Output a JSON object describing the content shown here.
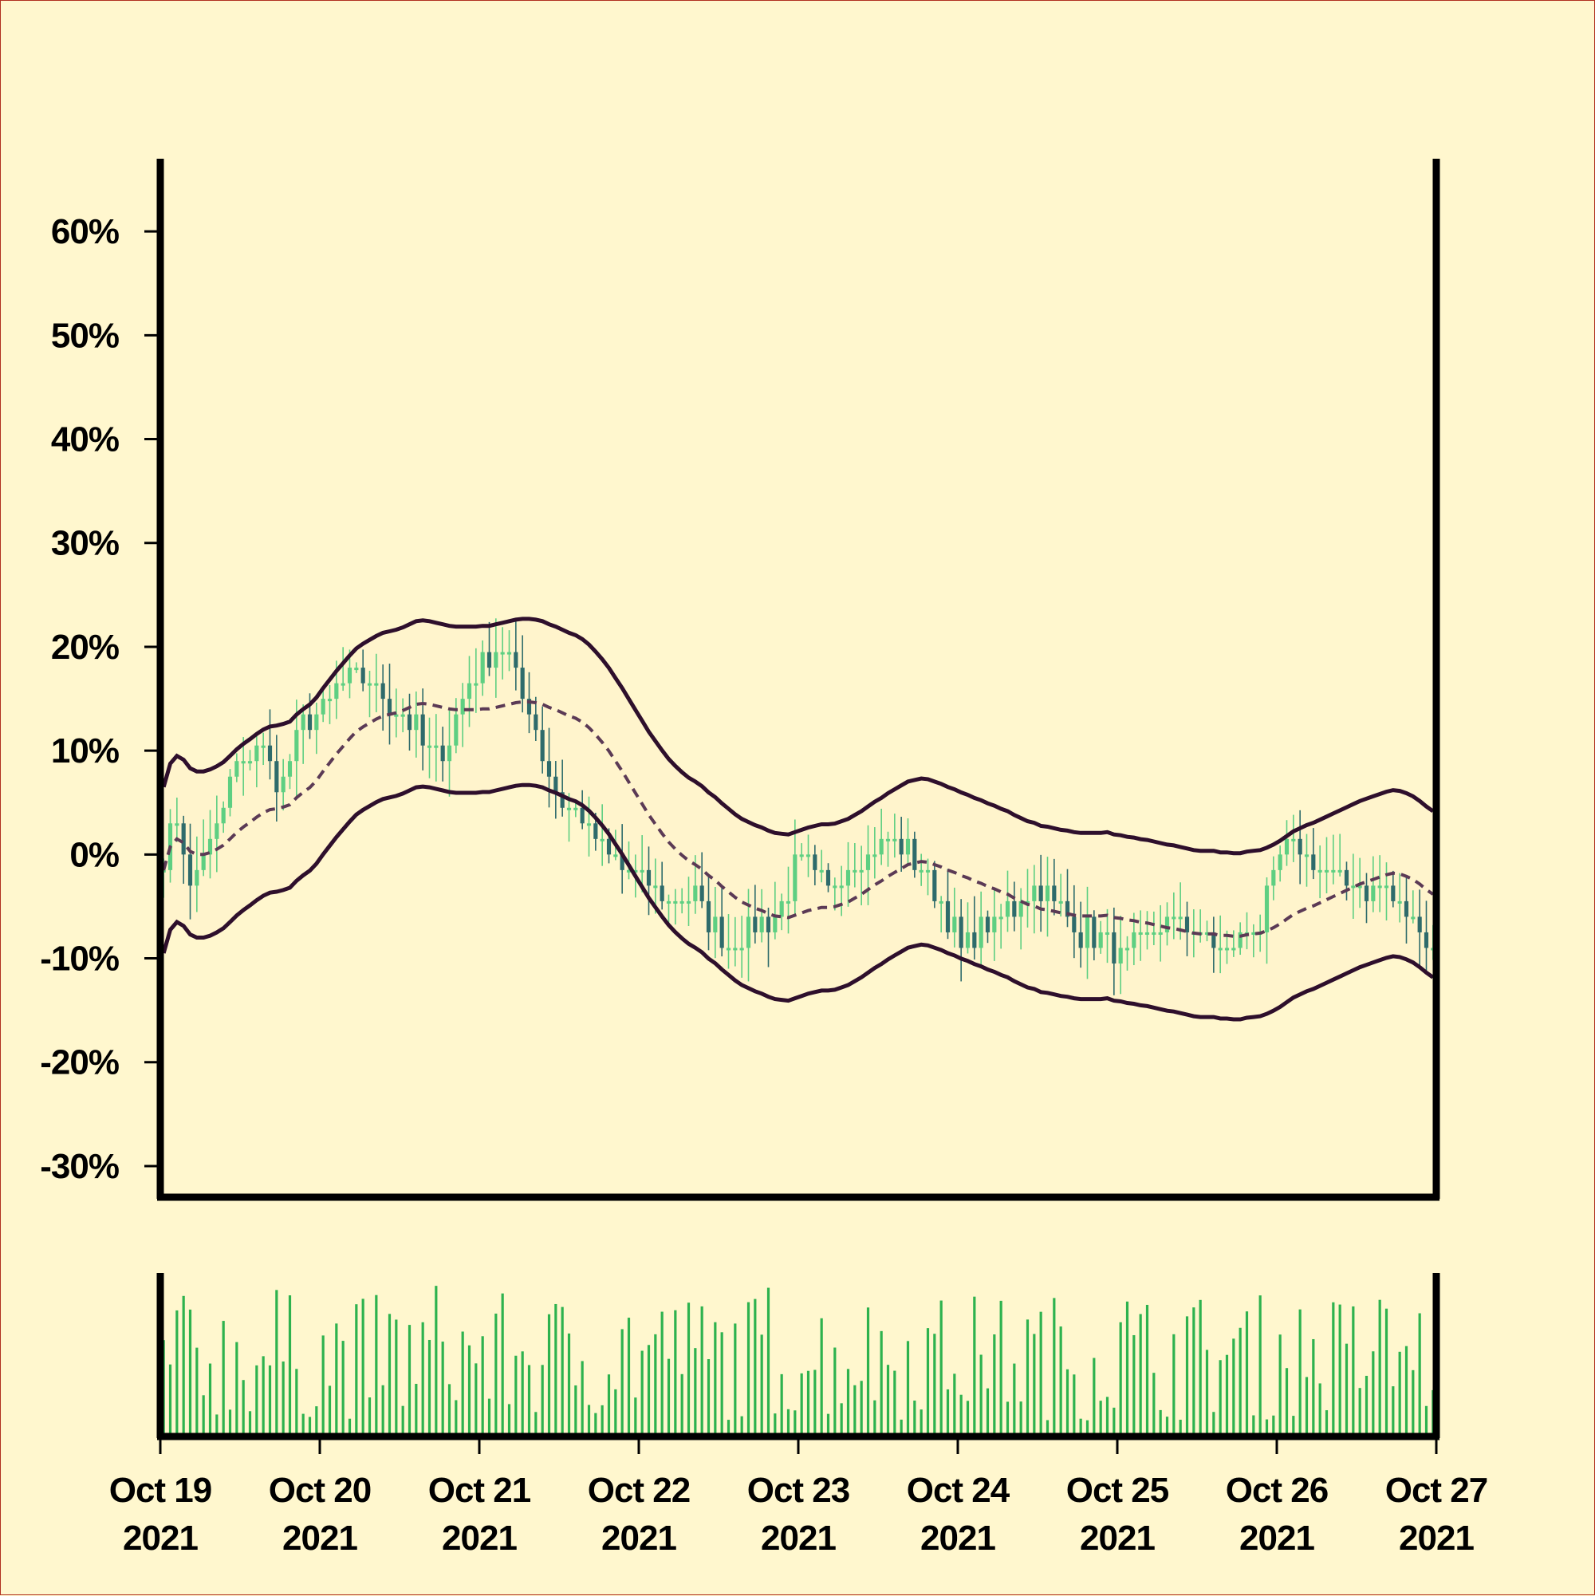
{
  "colors": {
    "background": "#fff7ce",
    "axis": "#000000",
    "band_line": "#2e0f2c",
    "band_fill": "#fff3cc",
    "middle_line": "#5b3a55",
    "candle_up": "#5ecf82",
    "candle_down": "#2e6b6b",
    "volume": "#2db24e"
  },
  "chart_data": {
    "type": "candlestick",
    "title": "",
    "xlabel": "",
    "ylabel": "",
    "y_tick_labels": [
      "-30%",
      "-20%",
      "-10%",
      "0%",
      "10%",
      "20%",
      "30%",
      "40%",
      "50%",
      "60%"
    ],
    "y_ticks": [
      -30,
      -20,
      -10,
      0,
      10,
      20,
      30,
      40,
      50,
      60
    ],
    "ylim": [
      -33,
      67
    ],
    "x_tick_labels": [
      {
        "date": "Oct 19",
        "year": "2021"
      },
      {
        "date": "Oct 20",
        "year": "2021"
      },
      {
        "date": "Oct 21",
        "year": "2021"
      },
      {
        "date": "Oct 22",
        "year": "2021"
      },
      {
        "date": "Oct 23",
        "year": "2021"
      },
      {
        "date": "Oct 24",
        "year": "2021"
      },
      {
        "date": "Oct 25",
        "year": "2021"
      },
      {
        "date": "Oct 26",
        "year": "2021"
      },
      {
        "date": "Oct 27",
        "year": "2021"
      }
    ],
    "x_range": [
      "2021-10-19",
      "2021-10-27"
    ],
    "price_series": {
      "interval": "hourly",
      "x_start": "2021-10-19 00:00",
      "x_end": "2021-10-27 00:00",
      "close_path": [
        [
          0,
          0
        ],
        [
          3,
          3
        ],
        [
          6,
          -3
        ],
        [
          10,
          1
        ],
        [
          16,
          8
        ],
        [
          22,
          11
        ],
        [
          26,
          6
        ],
        [
          30,
          12
        ],
        [
          36,
          14
        ],
        [
          42,
          18
        ],
        [
          48,
          16
        ],
        [
          56,
          12
        ],
        [
          62,
          9
        ],
        [
          68,
          17
        ],
        [
          76,
          20
        ],
        [
          82,
          13
        ],
        [
          88,
          6
        ],
        [
          94,
          3
        ],
        [
          100,
          0
        ],
        [
          106,
          -3
        ],
        [
          112,
          -4
        ],
        [
          118,
          -4
        ],
        [
          124,
          -8
        ],
        [
          128,
          -9
        ],
        [
          132,
          -7
        ],
        [
          138,
          -5
        ],
        [
          142,
          0
        ],
        [
          148,
          -3
        ],
        [
          154,
          -1
        ],
        [
          160,
          1
        ],
        [
          166,
          1
        ],
        [
          172,
          -4
        ],
        [
          178,
          -9
        ],
        [
          184,
          -7
        ],
        [
          190,
          -5
        ],
        [
          196,
          -3
        ],
        [
          202,
          -7
        ],
        [
          208,
          -8
        ],
        [
          214,
          -10
        ],
        [
          220,
          -7
        ],
        [
          226,
          -6
        ],
        [
          232,
          -8
        ],
        [
          238,
          -9
        ],
        [
          244,
          -7
        ],
        [
          250,
          1
        ],
        [
          256,
          0
        ],
        [
          262,
          -3
        ],
        [
          268,
          -3
        ],
        [
          274,
          -4
        ],
        [
          279,
          -6
        ],
        [
          283,
          -9
        ]
      ]
    },
    "bands": {
      "window_hours": 20,
      "width_pct": 8
    },
    "volume": {
      "scale": [
        0,
        100
      ]
    }
  }
}
